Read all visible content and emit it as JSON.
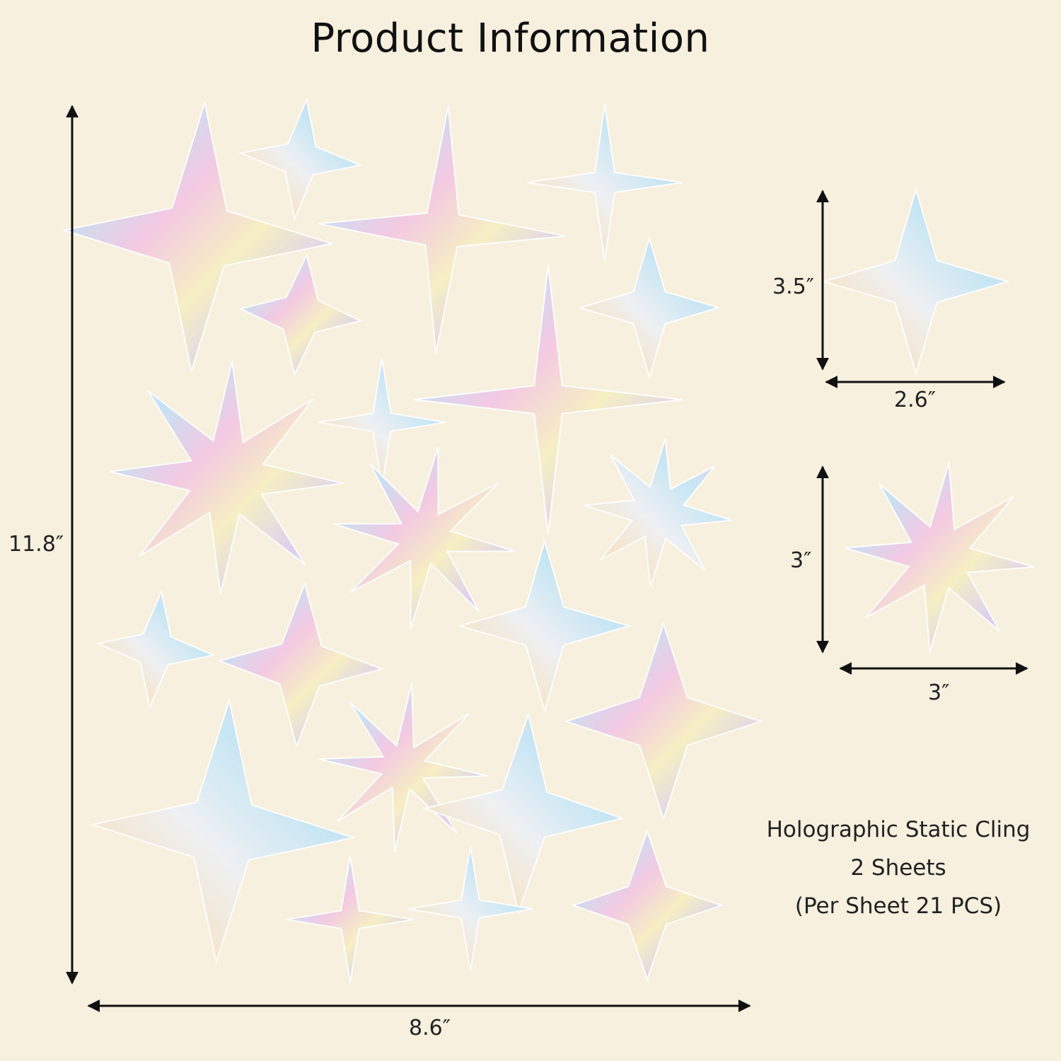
{
  "title": "Product Information",
  "dimensions": {
    "sheet_height": "11.8″",
    "sheet_width": "8.6″",
    "large_star_height": "3.5″",
    "large_star_width": "2.6″",
    "burst_star_height": "3″",
    "burst_star_width": "3″"
  },
  "info": {
    "line1": "Holographic Static Cling",
    "line2": "2 Sheets",
    "line3": "(Per Sheet 21 PCS)"
  },
  "colors": {
    "background": "#f7f0de",
    "arrow": "#111111",
    "holo_pink": "#f3c6e4",
    "holo_blue": "#bfe3f7",
    "holo_yellow": "#f6efc2",
    "holo_lilac": "#d9cdf4"
  }
}
